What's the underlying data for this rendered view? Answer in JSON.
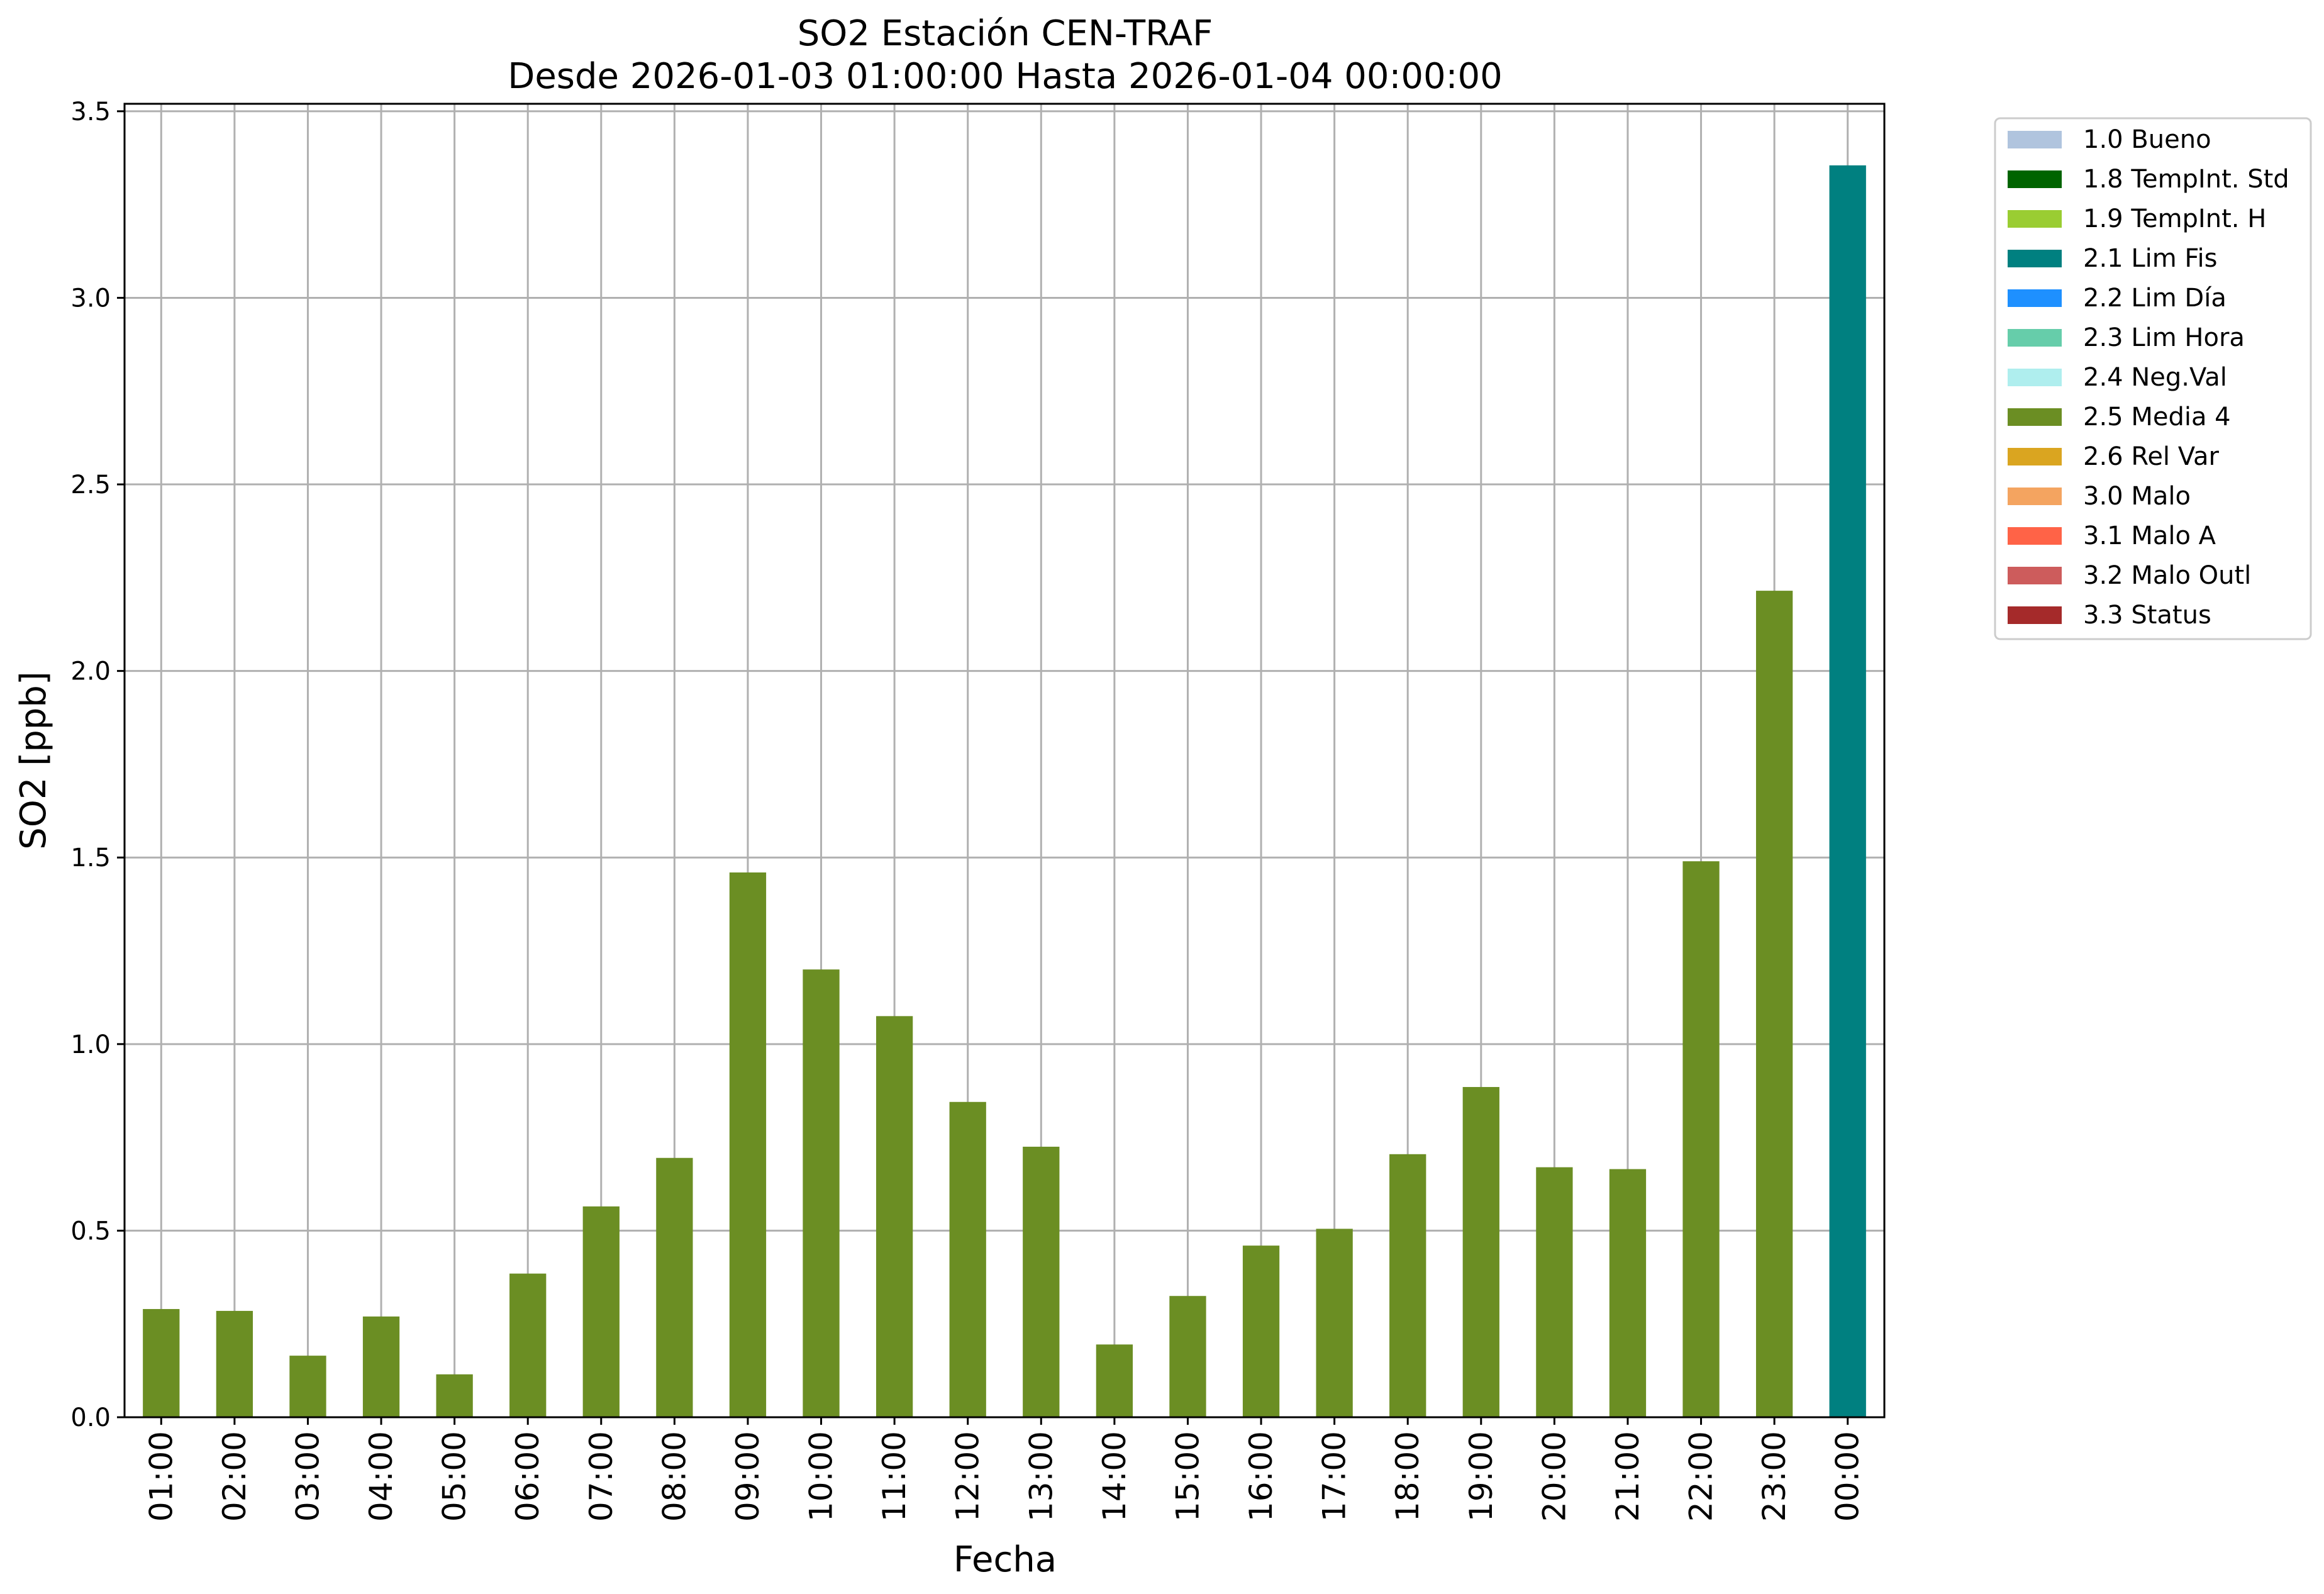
{
  "chart_data": {
    "type": "bar",
    "title": "SO2 Estación CEN-TRAF",
    "subtitle": "Desde 2026-01-03 01:00:00 Hasta 2026-01-04 00:00:00",
    "xlabel": "Fecha",
    "ylabel": "SO2 [ppb]",
    "ylim": [
      0,
      3.52
    ],
    "yticks": [
      "0.0",
      "0.5",
      "1.0",
      "1.5",
      "2.0",
      "2.5",
      "3.0",
      "3.5"
    ],
    "grid": true,
    "legend_position": "outside-right",
    "categories": [
      "01:00",
      "02:00",
      "03:00",
      "04:00",
      "05:00",
      "06:00",
      "07:00",
      "08:00",
      "09:00",
      "10:00",
      "11:00",
      "12:00",
      "13:00",
      "14:00",
      "15:00",
      "16:00",
      "17:00",
      "18:00",
      "19:00",
      "20:00",
      "21:00",
      "22:00",
      "23:00",
      "00:00"
    ],
    "values": [
      0.29,
      0.285,
      0.165,
      0.27,
      0.115,
      0.385,
      0.565,
      0.695,
      1.46,
      1.2,
      1.075,
      0.845,
      0.725,
      0.195,
      0.325,
      0.46,
      0.505,
      0.705,
      0.885,
      0.67,
      0.665,
      1.49,
      2.215,
      3.355
    ],
    "flags": [
      "2.5 Media 4",
      "2.5 Media 4",
      "2.5 Media 4",
      "2.5 Media 4",
      "2.5 Media 4",
      "2.5 Media 4",
      "2.5 Media 4",
      "2.5 Media 4",
      "2.5 Media 4",
      "2.5 Media 4",
      "2.5 Media 4",
      "2.5 Media 4",
      "2.5 Media 4",
      "2.5 Media 4",
      "2.5 Media 4",
      "2.5 Media 4",
      "2.5 Media 4",
      "2.5 Media 4",
      "2.5 Media 4",
      "2.5 Media 4",
      "2.5 Media 4",
      "2.5 Media 4",
      "2.5 Media 4",
      "2.1 Lim Fis"
    ],
    "legend": [
      {
        "label": "1.0 Bueno",
        "color": "#b0c4de"
      },
      {
        "label": "1.8 TempInt. Std",
        "color": "#006400"
      },
      {
        "label": "1.9 TempInt. H",
        "color": "#9acd32"
      },
      {
        "label": "2.1 Lim Fis",
        "color": "#008080"
      },
      {
        "label": "2.2 Lim Día",
        "color": "#1e90ff"
      },
      {
        "label": "2.3 Lim Hora",
        "color": "#66cdaa"
      },
      {
        "label": "2.4 Neg.Val",
        "color": "#afeeee"
      },
      {
        "label": "2.5 Media 4",
        "color": "#6b8e23"
      },
      {
        "label": "2.6 Rel Var",
        "color": "#daa520"
      },
      {
        "label": "3.0 Malo",
        "color": "#f4a460"
      },
      {
        "label": "3.1 Malo A",
        "color": "#ff6347"
      },
      {
        "label": "3.2 Malo Outl",
        "color": "#cd5c5c"
      },
      {
        "label": "3.3 Status",
        "color": "#a52a2a"
      }
    ]
  }
}
